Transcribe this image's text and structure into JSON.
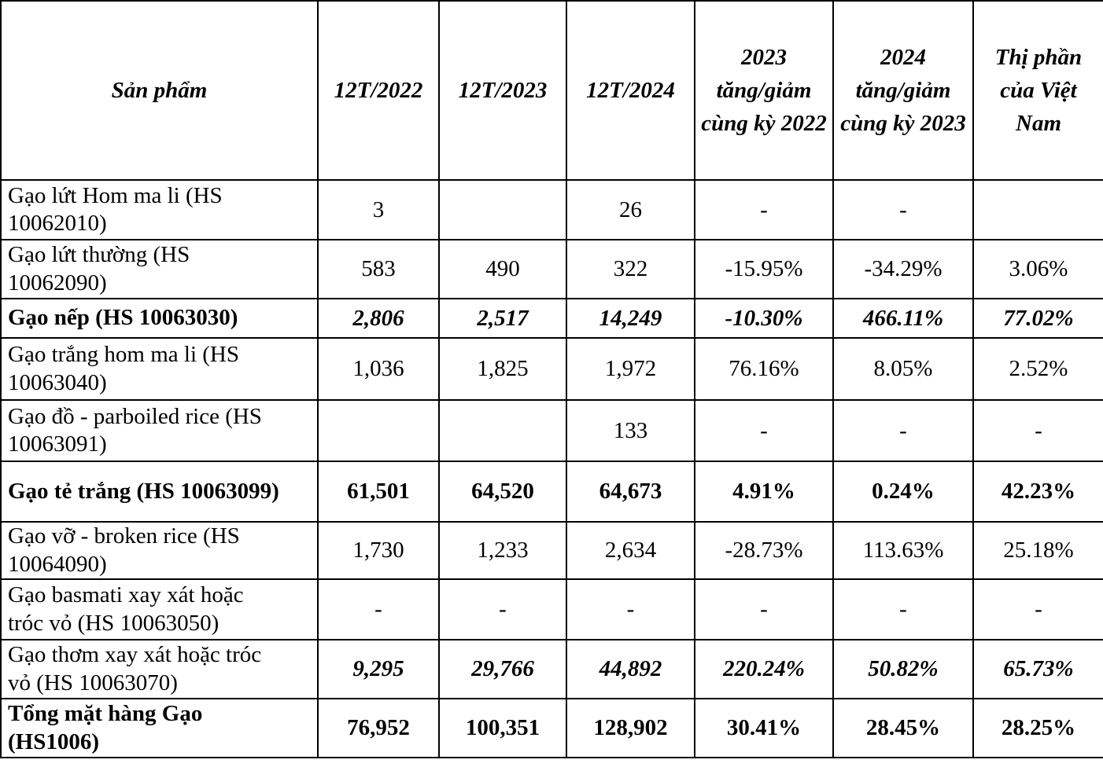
{
  "table": {
    "columns": [
      {
        "label": "Sản phẩm"
      },
      {
        "label": "12T/2022"
      },
      {
        "label": "12T/2023"
      },
      {
        "label": "12T/2024"
      },
      {
        "label": "2023 tăng/giảm cùng kỳ 2022"
      },
      {
        "label": "2024 tăng/giảm cùng kỳ 2023"
      },
      {
        "label": "Thị phần của Việt Nam"
      }
    ],
    "rows": [
      {
        "product": "Gạo lứt Hom ma li (HS 10062010)",
        "values": [
          "3",
          "",
          "26",
          "-",
          "-",
          ""
        ],
        "label_style": "regular",
        "value_style": "regular"
      },
      {
        "product": "Gạo lứt thường (HS 10062090)",
        "values": [
          "583",
          "490",
          "322",
          "-15.95%",
          "-34.29%",
          "3.06%"
        ],
        "label_style": "regular",
        "value_style": "regular"
      },
      {
        "product": "Gạo nếp (HS 10063030)",
        "values": [
          "2,806",
          "2,517",
          "14,249",
          "-10.30%",
          "466.11%",
          "77.02%"
        ],
        "label_style": "bold",
        "value_style": "bolditalic"
      },
      {
        "product": "Gạo trắng hom ma li (HS 10063040)",
        "values": [
          "1,036",
          "1,825",
          "1,972",
          "76.16%",
          "8.05%",
          "2.52%"
        ],
        "label_style": "regular",
        "value_style": "regular"
      },
      {
        "product": "Gạo đồ - parboiled rice (HS 10063091)",
        "values": [
          "",
          "",
          "133",
          "-",
          "-",
          "-"
        ],
        "label_style": "regular",
        "value_style": "regular"
      },
      {
        "product": "Gạo tẻ trắng (HS 10063099)",
        "values": [
          "61,501",
          "64,520",
          "64,673",
          "4.91%",
          "0.24%",
          "42.23%"
        ],
        "label_style": "bold",
        "value_style": "bold"
      },
      {
        "product": "Gạo vỡ - broken rice (HS 10064090)",
        "values": [
          "1,730",
          "1,233",
          "2,634",
          "-28.73%",
          "113.63%",
          "25.18%"
        ],
        "label_style": "regular",
        "value_style": "regular"
      },
      {
        "product": "Gạo basmati xay xát hoặc tróc vỏ (HS 10063050)",
        "values": [
          "-",
          "-",
          "-",
          "-",
          "-",
          "-"
        ],
        "label_style": "regular",
        "value_style": "regular"
      },
      {
        "product": "Gạo thơm xay xát hoặc tróc vỏ (HS 10063070)",
        "values": [
          "9,295",
          "29,766",
          "44,892",
          "220.24%",
          "50.82%",
          "65.73%"
        ],
        "label_style": "regular",
        "value_style": "bolditalic"
      },
      {
        "product": "Tổng mặt hàng Gạo (HS1006)",
        "values": [
          "76,952",
          "100,351",
          "128,902",
          "30.41%",
          "28.45%",
          "28.25%"
        ],
        "label_style": "bold",
        "value_style": "bold"
      }
    ]
  }
}
